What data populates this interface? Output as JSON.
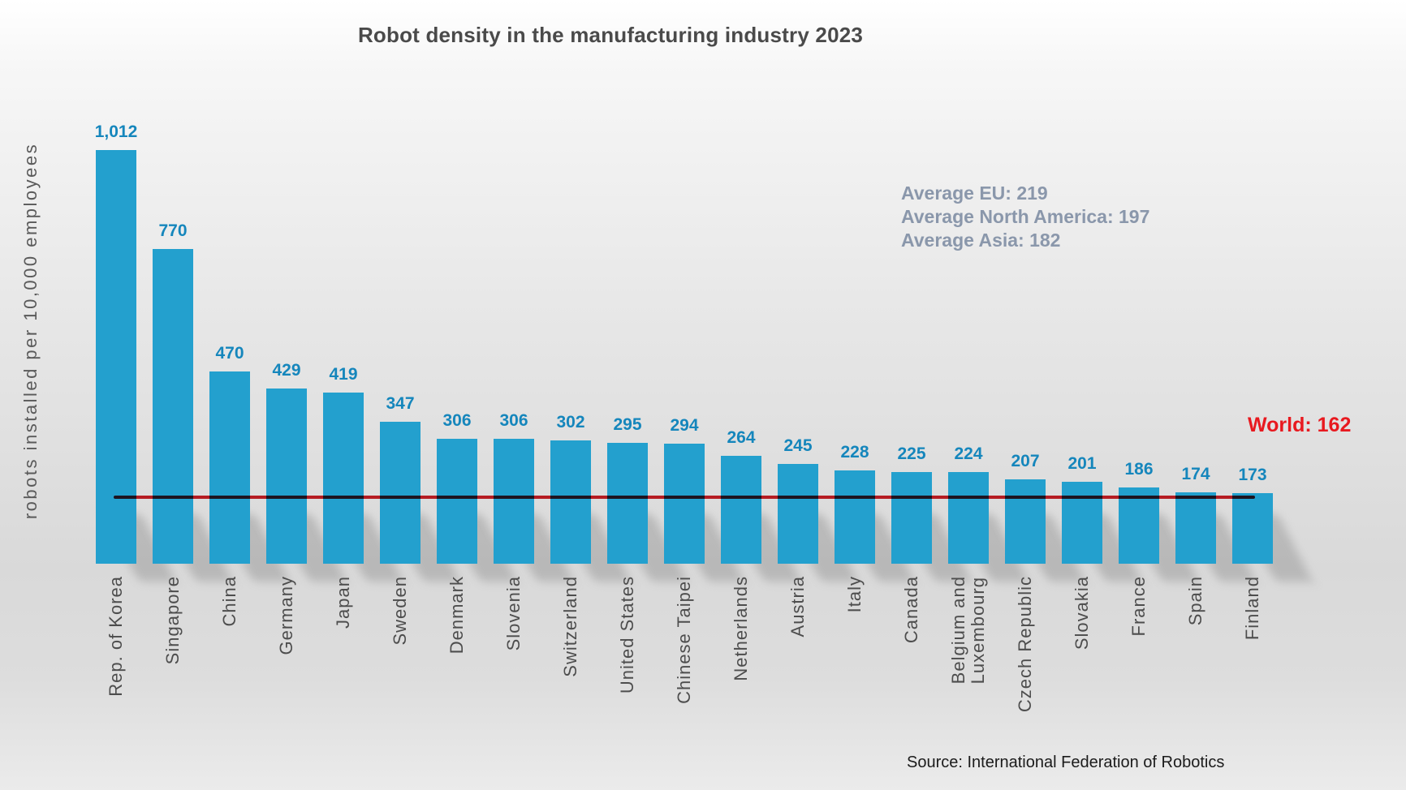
{
  "title": "Robot density in the manufacturing industry 2023",
  "y_axis_label": "robots installed per 10,000 employees",
  "source": "Source: International Federation of Robotics",
  "world_line": {
    "label": "World: 162",
    "value": 162
  },
  "annotations": [
    "Average EU: 219",
    "Average North America: 197",
    "Average Asia: 182"
  ],
  "colors": {
    "bar": "#23a0ce",
    "value_label": "#1586bc",
    "world_line": "#d22027",
    "world_label": "#e8191f",
    "annotation": "#8a97ab",
    "title": "#4a4a4a"
  },
  "chart_data": {
    "type": "bar",
    "title": "Robot density in the manufacturing industry 2023",
    "xlabel": "",
    "ylabel": "robots installed per 10,000 employees",
    "grid": false,
    "ylim": [
      0,
      1100
    ],
    "categories": [
      "Rep. of Korea",
      "Singapore",
      "China",
      "Germany",
      "Japan",
      "Sweden",
      "Denmark",
      "Slovenia",
      "Switzerland",
      "United States",
      "Chinese Taipei",
      "Netherlands",
      "Austria",
      "Italy",
      "Canada",
      "Belgium and\nLuxembourg",
      "Czech Republic",
      "Slovakia",
      "France",
      "Spain",
      "Finland"
    ],
    "values": [
      1012,
      770,
      470,
      429,
      419,
      347,
      306,
      306,
      302,
      295,
      294,
      264,
      245,
      228,
      225,
      224,
      207,
      201,
      186,
      174,
      173
    ],
    "value_labels": [
      "1,012",
      "770",
      "470",
      "429",
      "419",
      "347",
      "306",
      "306",
      "302",
      "295",
      "294",
      "264",
      "245",
      "228",
      "225",
      "224",
      "207",
      "201",
      "186",
      "174",
      "173"
    ],
    "reference_line": {
      "label": "World: 162",
      "value": 162
    },
    "annotations": [
      "Average EU: 219",
      "Average North America: 197",
      "Average Asia: 182"
    ],
    "legend": null
  }
}
